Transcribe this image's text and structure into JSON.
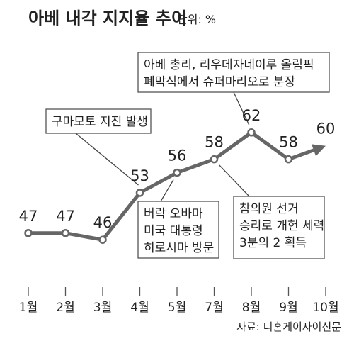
{
  "chart_data": {
    "type": "line",
    "title": "아베 내각 지지율 추이",
    "unit_label": "단위: %",
    "categories": [
      "1월",
      "2월",
      "3월",
      "4월",
      "5월",
      "7월",
      "8월",
      "9월",
      "10월"
    ],
    "values": [
      47,
      47,
      46,
      53,
      56,
      58,
      62,
      58,
      60
    ],
    "ylim": [
      40,
      68
    ],
    "grid": false,
    "line_color": "#666666",
    "annotations": [
      {
        "category": "4월",
        "lines": [
          "구마모토 지진 발생"
        ]
      },
      {
        "category": "5월",
        "lines": [
          "버락 오바마",
          "미국 대통령",
          "히로시마 방문"
        ]
      },
      {
        "category": "7월",
        "lines": [
          "참의원 선거",
          "승리로 개헌 세력",
          "3분의 2 획득"
        ]
      },
      {
        "category": "8월",
        "lines": [
          "아베 총리, 리우데자네이루 올림픽",
          "폐막식에서 슈퍼마리오로 분장"
        ]
      }
    ],
    "source": "자료: 니혼게이자이신문"
  }
}
